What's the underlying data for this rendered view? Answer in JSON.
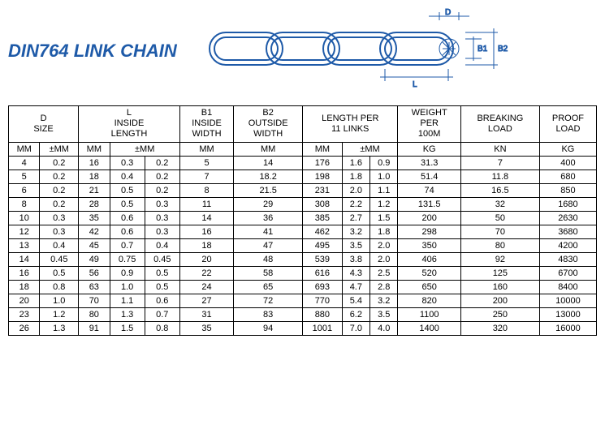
{
  "title": "DIN764 LINK CHAIN",
  "diagram": {
    "stroke": "#1e5aa8",
    "labels": {
      "D": "D",
      "B1": "B1",
      "B2": "B2",
      "L": "L"
    }
  },
  "headers": {
    "d_size": "D\nSIZE",
    "l_inside": "L\nINSIDE\nLENGTH",
    "b1": "B1\nINSIDE\nWIDTH",
    "b2": "B2\nOUTSIDE\nWIDTH",
    "len11": "LENGTH PER\n11 LINKS",
    "weight": "WEIGHT\nPER\n100M",
    "breaking": "BREAKING\nLOAD",
    "proof": "PROOF\nLOAD"
  },
  "sub": {
    "mm": "MM",
    "pm": "±MM",
    "kg": "KG",
    "kn": "KN"
  },
  "rows": [
    [
      "4",
      "0.2",
      "16",
      "0.3",
      "0.2",
      "5",
      "14",
      "176",
      "1.6",
      "0.9",
      "31.3",
      "7",
      "400"
    ],
    [
      "5",
      "0.2",
      "18",
      "0.4",
      "0.2",
      "7",
      "18.2",
      "198",
      "1.8",
      "1.0",
      "51.4",
      "11.8",
      "680"
    ],
    [
      "6",
      "0.2",
      "21",
      "0.5",
      "0.2",
      "8",
      "21.5",
      "231",
      "2.0",
      "1.1",
      "74",
      "16.5",
      "850"
    ],
    [
      "8",
      "0.2",
      "28",
      "0.5",
      "0.3",
      "11",
      "29",
      "308",
      "2.2",
      "1.2",
      "131.5",
      "32",
      "1680"
    ],
    [
      "10",
      "0.3",
      "35",
      "0.6",
      "0.3",
      "14",
      "36",
      "385",
      "2.7",
      "1.5",
      "200",
      "50",
      "2630"
    ],
    [
      "12",
      "0.3",
      "42",
      "0.6",
      "0.3",
      "16",
      "41",
      "462",
      "3.2",
      "1.8",
      "298",
      "70",
      "3680"
    ],
    [
      "13",
      "0.4",
      "45",
      "0.7",
      "0.4",
      "18",
      "47",
      "495",
      "3.5",
      "2.0",
      "350",
      "80",
      "4200"
    ],
    [
      "14",
      "0.45",
      "49",
      "0.75",
      "0.45",
      "20",
      "48",
      "539",
      "3.8",
      "2.0",
      "406",
      "92",
      "4830"
    ],
    [
      "16",
      "0.5",
      "56",
      "0.9",
      "0.5",
      "22",
      "58",
      "616",
      "4.3",
      "2.5",
      "520",
      "125",
      "6700"
    ],
    [
      "18",
      "0.8",
      "63",
      "1.0",
      "0.5",
      "24",
      "65",
      "693",
      "4.7",
      "2.8",
      "650",
      "160",
      "8400"
    ],
    [
      "20",
      "1.0",
      "70",
      "1.1",
      "0.6",
      "27",
      "72",
      "770",
      "5.4",
      "3.2",
      "820",
      "200",
      "10000"
    ],
    [
      "23",
      "1.2",
      "80",
      "1.3",
      "0.7",
      "31",
      "83",
      "880",
      "6.2",
      "3.5",
      "1100",
      "250",
      "13000"
    ],
    [
      "26",
      "1.3",
      "91",
      "1.5",
      "0.8",
      "35",
      "94",
      "1001",
      "7.0",
      "4.0",
      "1400",
      "320",
      "16000"
    ]
  ]
}
